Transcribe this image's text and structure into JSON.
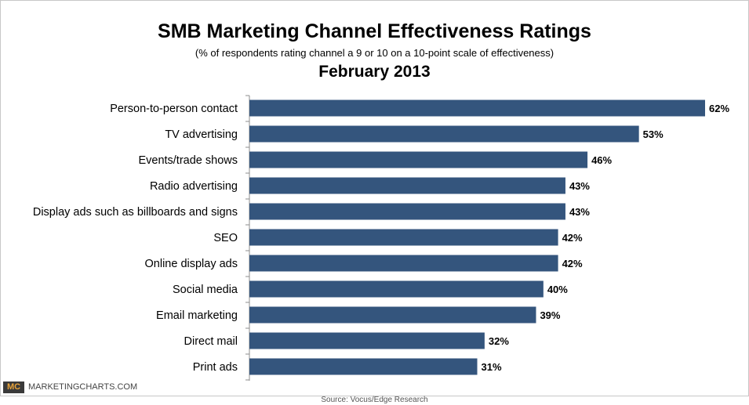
{
  "header": {
    "title": "SMB Marketing Channel Effectiveness Ratings",
    "subtitle": "(% of respondents rating channel a 9 or 10 on a 10-point scale of effectiveness)",
    "date": "February 2013"
  },
  "footer": {
    "logo": "MC",
    "brand": "MARKETINGCHARTS.COM",
    "source": "Source: Vocus/Edge Research"
  },
  "colors": {
    "bar": "#34557d",
    "axis": "#8c8c8c"
  },
  "chart_data": {
    "type": "bar",
    "orientation": "horizontal",
    "categories": [
      "Person-to-person contact",
      "TV advertising",
      "Events/trade shows",
      "Radio advertising",
      "Display ads such as billboards and signs",
      "SEO",
      "Online display ads",
      "Social media",
      "Email marketing",
      "Direct mail",
      "Print ads"
    ],
    "values": [
      62,
      53,
      46,
      43,
      43,
      42,
      42,
      40,
      39,
      32,
      31
    ],
    "value_labels": [
      "62%",
      "53%",
      "46%",
      "43%",
      "43%",
      "42%",
      "42%",
      "40%",
      "39%",
      "32%",
      "31%"
    ],
    "xlim": [
      0,
      62
    ],
    "grid": false,
    "legend": "none"
  }
}
